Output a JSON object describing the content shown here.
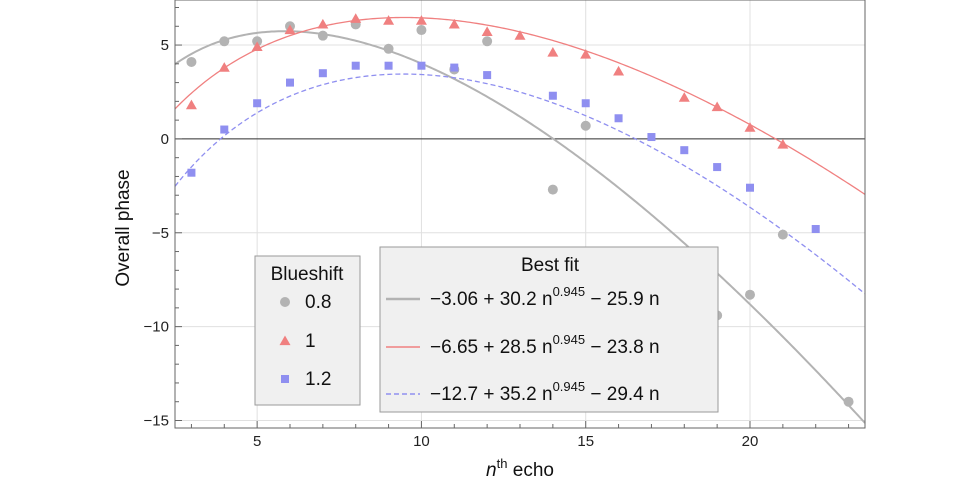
{
  "chart_data": {
    "type": "scatter",
    "xlabel_italic": "n",
    "xlabel_sup": "th",
    "xlabel_rest": " echo",
    "ylabel": "Overall phase",
    "xlim": [
      2.5,
      23.5
    ],
    "ylim": [
      -15.4,
      7.4
    ],
    "xticks": [
      5,
      10,
      15,
      20
    ],
    "yticks": [
      -15,
      -10,
      -5,
      0,
      5
    ],
    "grid": true,
    "series": [
      {
        "name": "0.8",
        "marker": "circle",
        "color": "#b3b3b3",
        "x": [
          3,
          4,
          5,
          6,
          7,
          8,
          9,
          10,
          11,
          12,
          14,
          15,
          19,
          20,
          21,
          23
        ],
        "y": [
          4.1,
          5.2,
          5.2,
          6.0,
          5.5,
          6.1,
          4.8,
          5.8,
          3.7,
          5.2,
          -2.7,
          0.7,
          -9.4,
          -8.3,
          -5.1,
          -14.0
        ],
        "fit": {
          "a": -3.06,
          "b": 30.2,
          "p": 0.945,
          "c": -25.9,
          "label": "−3.06 + 30.2 n",
          "exp": "0.945",
          "tail": " − 25.9 n",
          "line_color": "#b3b3b3",
          "dash": ""
        }
      },
      {
        "name": "1",
        "marker": "triangle",
        "color": "#f08080",
        "x": [
          3,
          4,
          5,
          6,
          7,
          8,
          9,
          10,
          11,
          12,
          13,
          14,
          15,
          16,
          18,
          19,
          20,
          21
        ],
        "y": [
          1.8,
          3.8,
          4.9,
          5.8,
          6.1,
          6.4,
          6.3,
          6.3,
          6.1,
          5.7,
          5.5,
          4.6,
          4.5,
          3.6,
          2.2,
          1.7,
          0.6,
          -0.3
        ],
        "fit": {
          "a": -6.65,
          "b": 28.5,
          "p": 0.945,
          "c": -23.8,
          "label": "−6.65 + 28.5 n",
          "exp": "0.945",
          "tail": " − 23.8 n",
          "line_color": "#f08080",
          "dash": ""
        }
      },
      {
        "name": "1.2",
        "marker": "square",
        "color": "#8f8ff0",
        "x": [
          3,
          4,
          5,
          6,
          7,
          8,
          9,
          10,
          11,
          12,
          14,
          15,
          16,
          17,
          18,
          19,
          20,
          22
        ],
        "y": [
          -1.8,
          0.5,
          1.9,
          3.0,
          3.5,
          3.9,
          3.9,
          3.9,
          3.8,
          3.4,
          2.3,
          1.9,
          1.1,
          0.1,
          -0.6,
          -1.5,
          -2.6,
          -4.8
        ],
        "fit": {
          "a": -12.7,
          "b": 35.2,
          "p": 0.945,
          "c": -29.4,
          "label": "−12.7 + 35.2 n",
          "exp": "0.945",
          "tail": " − 29.4 n",
          "line_color": "#8f8ff0",
          "dash": "5,3"
        }
      }
    ],
    "legend_markers_title": "Blueshift",
    "legend_fits_title": "Best fit"
  }
}
